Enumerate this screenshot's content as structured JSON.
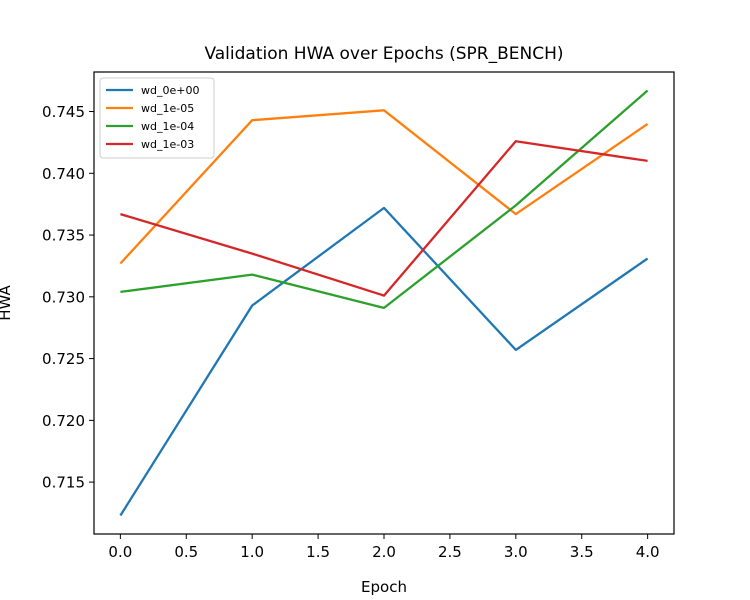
{
  "chart_data": {
    "type": "line",
    "title": "Validation HWA over Epochs (SPR_BENCH)",
    "xlabel": "Epoch",
    "ylabel": "HWA",
    "xlim": [
      -0.2,
      4.2
    ],
    "ylim": [
      0.7108,
      0.7482
    ],
    "xticks": [
      0.0,
      0.5,
      1.0,
      1.5,
      2.0,
      2.5,
      3.0,
      3.5,
      4.0
    ],
    "xtick_labels": [
      "0.0",
      "0.5",
      "1.0",
      "1.5",
      "2.0",
      "2.5",
      "3.0",
      "3.5",
      "4.0"
    ],
    "yticks": [
      0.715,
      0.72,
      0.725,
      0.73,
      0.735,
      0.74,
      0.745
    ],
    "ytick_labels": [
      "0.715",
      "0.720",
      "0.725",
      "0.730",
      "0.735",
      "0.740",
      "0.745"
    ],
    "grid": false,
    "legend_position": "top-left",
    "x": [
      0,
      1,
      2,
      3,
      4
    ],
    "series": [
      {
        "name": "wd_0e+00",
        "color": "#1f77b4",
        "values": [
          0.7123,
          0.7293,
          0.7372,
          0.7257,
          0.7331
        ]
      },
      {
        "name": "wd_1e-05",
        "color": "#ff7f0e",
        "values": [
          0.7327,
          0.7443,
          0.7451,
          0.7367,
          0.744
        ]
      },
      {
        "name": "wd_1e-04",
        "color": "#2ca02c",
        "values": [
          0.7304,
          0.7318,
          0.7291,
          0.7374,
          0.7467
        ]
      },
      {
        "name": "wd_1e-03",
        "color": "#d62728",
        "values": [
          0.7367,
          0.7335,
          0.7301,
          0.7426,
          0.741
        ]
      }
    ]
  }
}
